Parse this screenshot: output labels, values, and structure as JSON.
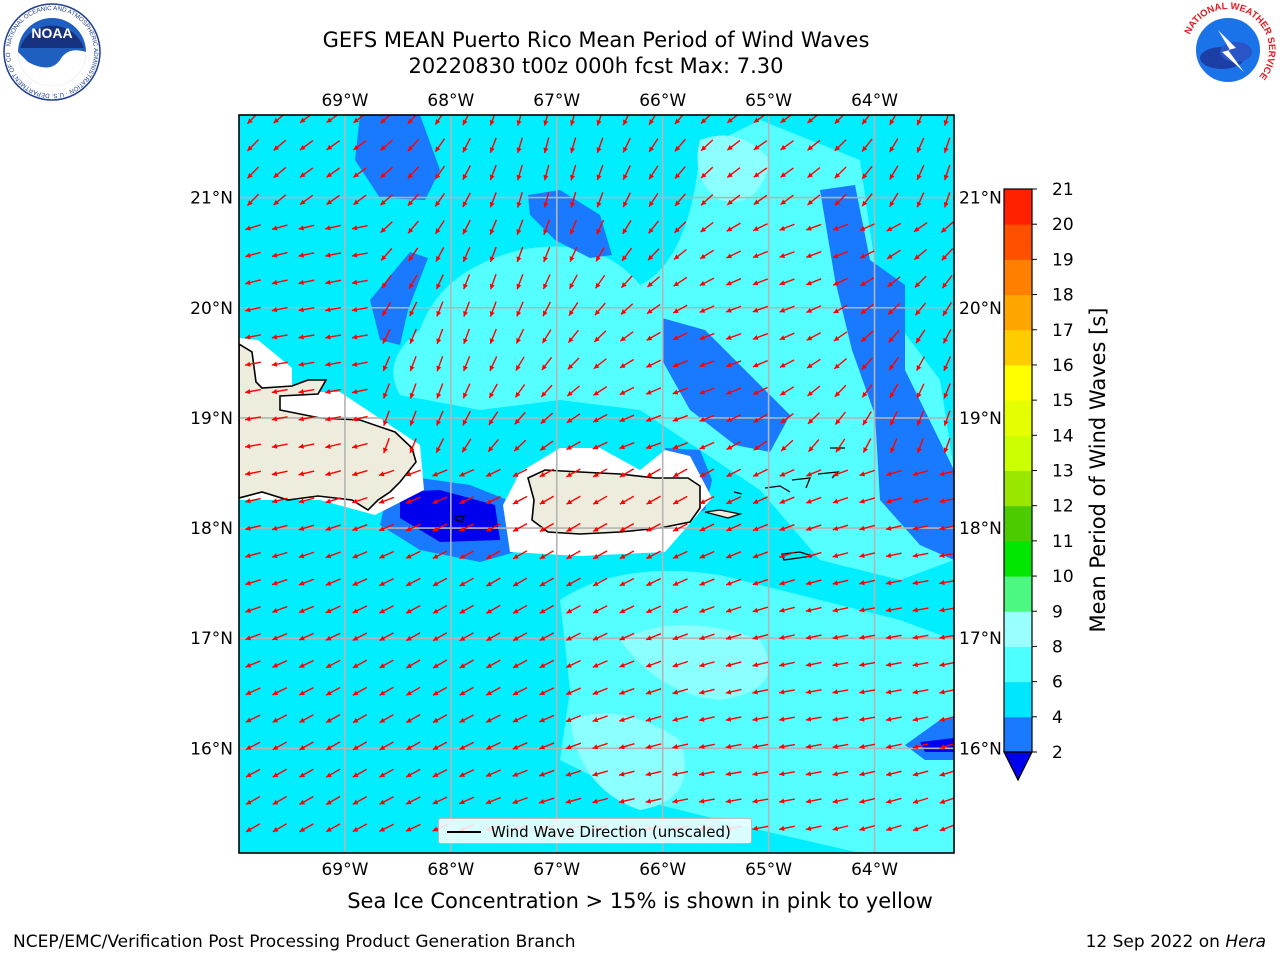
{
  "header": {
    "title_line1": "GEFS MEAN Puerto Rico Mean Period of Wind Waves",
    "title_line2": "20220830 t00z 000h fcst   Max: 7.30"
  },
  "logos": {
    "noaa": {
      "text": "NOAA",
      "ring_text": "NATIONAL OCEANIC AND ATMOSPHERIC ADMINISTRATION · U.S. DEPARTMENT OF COMMERCE"
    },
    "nws": {
      "ring_text": "NATIONAL WEATHER SERVICE"
    }
  },
  "map": {
    "lon_labels": [
      "69°W",
      "68°W",
      "67°W",
      "66°W",
      "65°W",
      "64°W"
    ],
    "lat_labels": [
      "21°N",
      "20°N",
      "19°N",
      "18°N",
      "17°N",
      "16°N"
    ],
    "lon_values": [
      -69,
      -68,
      -67,
      -66,
      -65,
      -64
    ],
    "lat_values": [
      21,
      20,
      19,
      18,
      17,
      16
    ],
    "extent": {
      "lon_min": -70,
      "lon_max": -63.25,
      "lat_min": 15.05,
      "lat_max": 21.75
    },
    "arrow_direction": "toward west-southwest",
    "arrow_color": "#ff0000",
    "land_color": "#eeecdc"
  },
  "legend": {
    "label": "Wind Wave Direction (unscaled)"
  },
  "colorbar": {
    "title": "Mean Period of Wind Waves [s]",
    "levels": [
      2,
      4,
      6,
      8,
      9,
      10,
      11,
      12,
      13,
      14,
      15,
      16,
      17,
      18,
      19,
      20,
      21
    ],
    "colors": [
      "#1a7aff",
      "#00e6ff",
      "#4dffff",
      "#99ffff",
      "#4df880",
      "#00e600",
      "#4ccc00",
      "#99e600",
      "#ccff00",
      "#e6ff00",
      "#ffff00",
      "#ffcc00",
      "#ffa500",
      "#ff8000",
      "#ff5000",
      "#ff2000"
    ],
    "under_color": "#0000ee"
  },
  "notes": {
    "sea_ice": "Sea Ice Concentration > 15% is shown in pink to yellow"
  },
  "footer": {
    "left": "NCEP/EMC/Verification Post Processing Product Generation Branch",
    "right_prefix": "12 Sep 2022 on ",
    "right_host": "Hera"
  }
}
